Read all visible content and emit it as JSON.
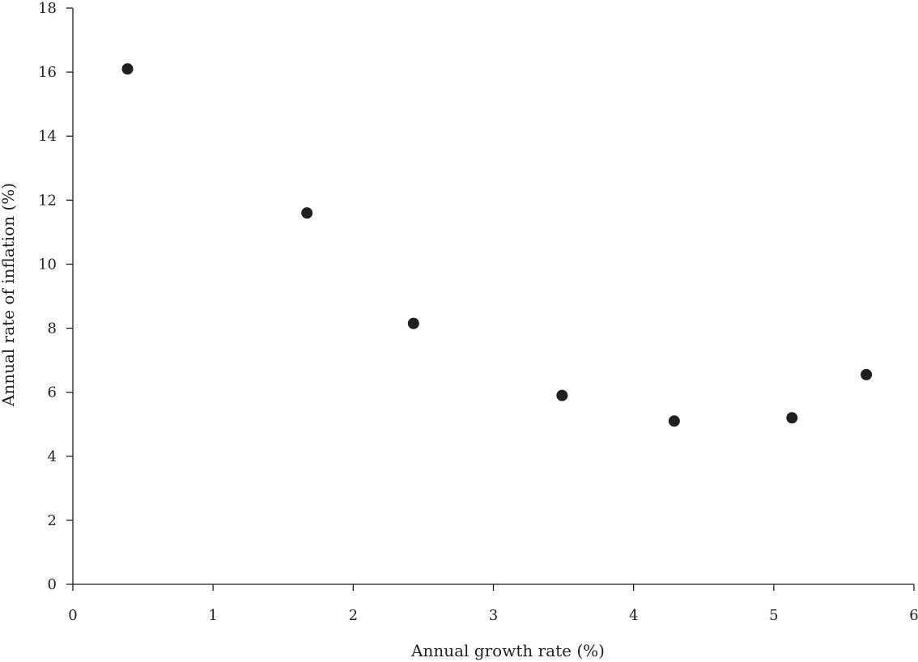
{
  "chart_data": {
    "type": "scatter",
    "title": "",
    "xlabel": "Annual growth rate (%)",
    "ylabel": "Annual rate of inflation (%)",
    "xlim": [
      0,
      6
    ],
    "ylim": [
      0,
      18
    ],
    "xticks": [
      0,
      1,
      2,
      3,
      4,
      5,
      6
    ],
    "yticks": [
      0,
      2,
      4,
      6,
      8,
      10,
      12,
      14,
      16,
      18
    ],
    "grid": false,
    "legend": "none",
    "point_color": "#231f20",
    "series": [
      {
        "points": [
          {
            "x": 0.39,
            "y": 16.1
          },
          {
            "x": 1.67,
            "y": 11.6
          },
          {
            "x": 2.43,
            "y": 8.15
          },
          {
            "x": 3.49,
            "y": 5.9
          },
          {
            "x": 4.29,
            "y": 5.1
          },
          {
            "x": 5.13,
            "y": 5.2
          },
          {
            "x": 5.66,
            "y": 6.55
          }
        ]
      }
    ]
  }
}
